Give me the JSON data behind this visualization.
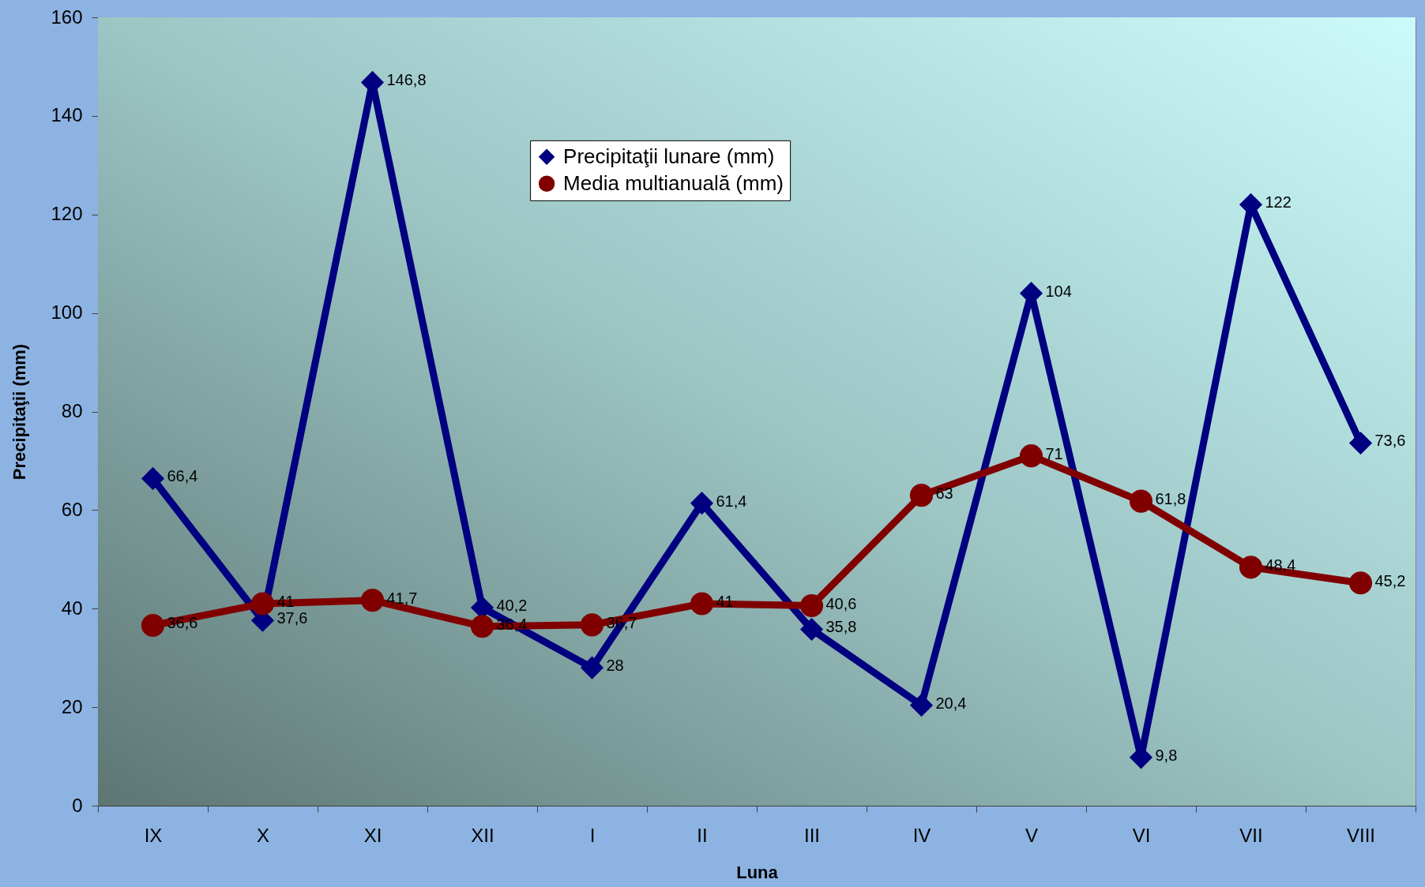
{
  "chart_data": {
    "type": "line",
    "xlabel": "Luna",
    "ylabel": "Precipitaţii (mm)",
    "categories": [
      "IX",
      "X",
      "XI",
      "XII",
      "I",
      "II",
      "III",
      "IV",
      "V",
      "VI",
      "VII",
      "VIII"
    ],
    "series": [
      {
        "name": "Precipitaţii lunare (mm)",
        "color": "#000080",
        "marker": "diamond",
        "values": [
          66.4,
          37.6,
          146.8,
          40.2,
          28,
          61.4,
          35.8,
          20.4,
          104,
          9.8,
          122,
          73.6
        ],
        "value_labels": [
          "66,4",
          "37,6",
          "146,8",
          "40,2",
          "28",
          "61,4",
          "35,8",
          "20,4",
          "104",
          "9,8",
          "122",
          "73,6"
        ]
      },
      {
        "name": "Media multianuală (mm)",
        "color": "#800000",
        "marker": "circle",
        "values": [
          36.6,
          41,
          41.7,
          36.4,
          36.7,
          41,
          40.6,
          63,
          71,
          61.8,
          48.4,
          45.2
        ],
        "value_labels": [
          "36,6",
          "41",
          "41,7",
          "36,4",
          "36,7",
          "41",
          "40,6",
          "63",
          "71",
          "61,8",
          "48,4",
          "45,2"
        ]
      }
    ],
    "ylim": [
      0,
      160
    ],
    "yticks": [
      0,
      20,
      40,
      60,
      80,
      100,
      120,
      140,
      160
    ],
    "grid": false,
    "legend": "top",
    "line_style": "solid"
  }
}
